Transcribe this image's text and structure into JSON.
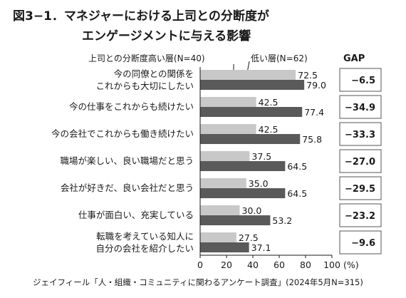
{
  "chart_data": {
    "type": "bar",
    "orientation": "horizontal",
    "title_line1": "図3−1．マネジャーにおける上司との分断度が",
    "title_line2": "エンゲージメントに与える影響",
    "categories": [
      [
        "今の同僚との関係を",
        "これからも大切にしたい"
      ],
      [
        "今の仕事をこれからも続けたい"
      ],
      [
        "今の会社でこれからも働き続けたい"
      ],
      [
        "職場が楽しい、良い職場だと思う"
      ],
      [
        "会社が好きだ、良い会社だと思う"
      ],
      [
        "仕事が面白い、充実している"
      ],
      [
        "転職を考えている知人に",
        "自分の会社を紹介したい"
      ]
    ],
    "series": [
      {
        "name": "上司との分断度高い層(N=40)",
        "color": "#c8c8c8",
        "values": [
          72.5,
          42.5,
          42.5,
          37.5,
          35.0,
          30.0,
          27.5
        ]
      },
      {
        "name": "低い層(N=62)",
        "color": "#5a5a5a",
        "values": [
          79.0,
          77.4,
          75.8,
          64.5,
          64.5,
          53.2,
          37.1
        ]
      }
    ],
    "value_labels": [
      [
        "72.5",
        "42.5",
        "42.5",
        "37.5",
        "35.0",
        "30.0",
        "27.5"
      ],
      [
        "79.0",
        "77.4",
        "75.8",
        "64.5",
        "64.5",
        "53.2",
        "37.1"
      ]
    ],
    "gap_header": "GAP",
    "gap_values": [
      "−6.5",
      "−34.9",
      "−33.3",
      "−27.0",
      "−29.5",
      "−23.2",
      "−9.6"
    ],
    "xlim": [
      0,
      100
    ],
    "x_ticks": [
      "0",
      "20",
      "40",
      "60",
      "80",
      "100"
    ],
    "x_unit": "(%)",
    "grid": false,
    "legend_position": "top",
    "source": "ジェイフィール「人・組織・コミュニティに関わるアンケート調査」(2024年5月N=315)"
  }
}
